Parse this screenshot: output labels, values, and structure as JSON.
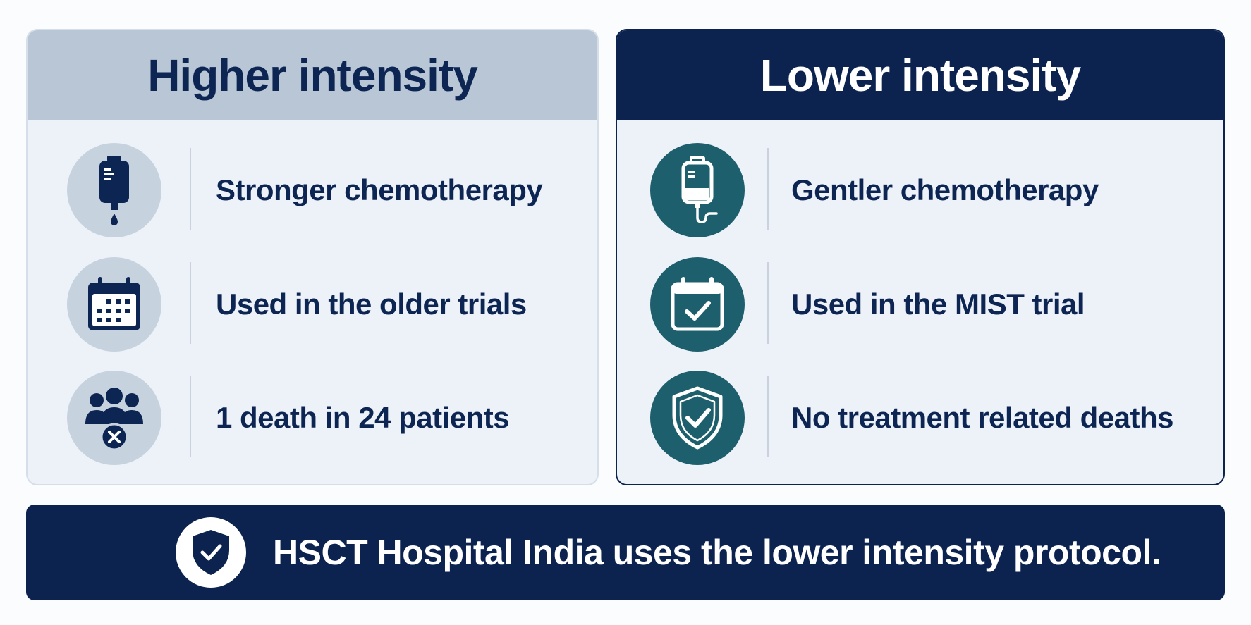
{
  "higher": {
    "title": "Higher intensity",
    "rows": [
      {
        "icon": "iv-drip-bag-icon",
        "label": "Stronger chemotherapy"
      },
      {
        "icon": "calendar-icon",
        "label": "Used in the older trials"
      },
      {
        "icon": "patients-x-icon",
        "label": "1 death in 24 patients"
      }
    ]
  },
  "lower": {
    "title": "Lower intensity",
    "rows": [
      {
        "icon": "iv-bag-tube-icon",
        "label": "Gentler chemotherapy"
      },
      {
        "icon": "calendar-check-icon",
        "label": "Used in the MIST trial"
      },
      {
        "icon": "shield-check-icon",
        "label": "No treatment related deaths"
      }
    ]
  },
  "footer": {
    "icon": "shield-check-icon",
    "text": "HSCT Hospital India uses the lower intensity protocol."
  },
  "colors": {
    "navy": "#0c2350",
    "teal": "#1d5f6c",
    "light_header": "#b9c6d6",
    "panel_bg": "#edf1f8"
  }
}
